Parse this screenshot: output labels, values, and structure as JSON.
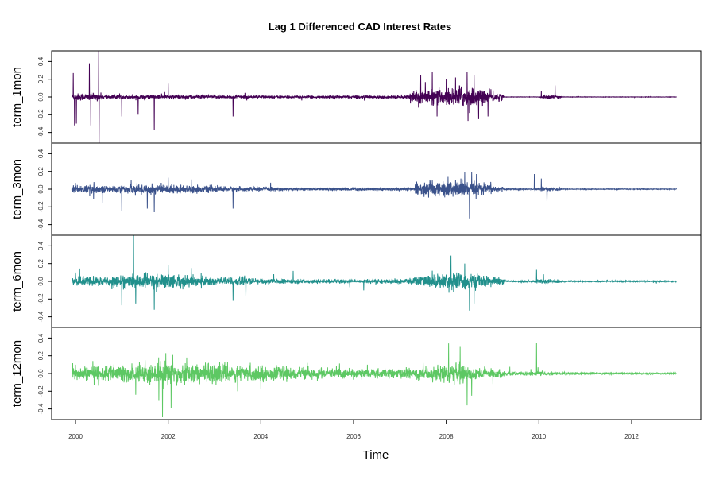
{
  "chart_data": {
    "type": "line",
    "title": "Lag 1 Differenced CAD Interest Rates",
    "xlabel": "Time",
    "xlim": [
      2000,
      2013
    ],
    "x_ticks": [
      "2000",
      "2002",
      "2004",
      "2006",
      "2008",
      "2010",
      "2012"
    ],
    "y_ticks": [
      "-0.4",
      "-0.2",
      "0.0",
      "0.2",
      "0.4"
    ],
    "ylim": [
      -0.52,
      0.52
    ],
    "data_start": 1999.92,
    "data_end": 2012.97,
    "series": [
      {
        "name": "term_1mon",
        "color": "#440154",
        "volatility": [
          [
            1999.9,
            0.02
          ],
          [
            2000.5,
            0.02
          ],
          [
            2000.6,
            0.01
          ],
          [
            2002.0,
            0.012
          ],
          [
            2003.0,
            0.01
          ],
          [
            2005.0,
            0.006
          ],
          [
            2006.0,
            0.008
          ],
          [
            2007.2,
            0.008
          ],
          [
            2007.3,
            0.04
          ],
          [
            2008.0,
            0.04
          ],
          [
            2008.3,
            0.06
          ],
          [
            2008.8,
            0.04
          ],
          [
            2009.2,
            0.02
          ],
          [
            2009.25,
            0.001
          ],
          [
            2010.0,
            0.001
          ],
          [
            2010.05,
            0.01
          ],
          [
            2010.45,
            0.01
          ],
          [
            2010.5,
            0.001
          ],
          [
            2013.0,
            0.001
          ]
        ],
        "spikes": [
          [
            1999.95,
            0.27
          ],
          [
            1999.98,
            -0.32
          ],
          [
            2000.02,
            -0.3
          ],
          [
            2000.3,
            0.38
          ],
          [
            2000.33,
            -0.32
          ],
          [
            2000.5,
            0.62
          ],
          [
            2000.51,
            -0.75
          ],
          [
            2000.55,
            0.05
          ],
          [
            2001.0,
            -0.22
          ],
          [
            2001.35,
            -0.2
          ],
          [
            2001.7,
            -0.37
          ],
          [
            2002.0,
            0.15
          ],
          [
            2003.4,
            -0.22
          ],
          [
            2007.35,
            0.08
          ],
          [
            2007.45,
            0.25
          ],
          [
            2007.7,
            0.28
          ],
          [
            2007.8,
            -0.22
          ],
          [
            2008.0,
            0.2
          ],
          [
            2008.2,
            0.22
          ],
          [
            2008.45,
            0.28
          ],
          [
            2008.47,
            -0.27
          ],
          [
            2008.5,
            -0.18
          ],
          [
            2008.6,
            0.25
          ],
          [
            2008.7,
            -0.25
          ],
          [
            2008.9,
            -0.22
          ],
          [
            2010.35,
            0.13
          ],
          [
            2010.05,
            0.07
          ]
        ]
      },
      {
        "name": "term_3mon",
        "color": "#3B528B",
        "volatility": [
          [
            1999.9,
            0.02
          ],
          [
            2001.0,
            0.02
          ],
          [
            2001.5,
            0.03
          ],
          [
            2002.0,
            0.025
          ],
          [
            2003.0,
            0.015
          ],
          [
            2005.0,
            0.006
          ],
          [
            2006.0,
            0.008
          ],
          [
            2007.3,
            0.008
          ],
          [
            2007.35,
            0.035
          ],
          [
            2008.3,
            0.05
          ],
          [
            2008.8,
            0.03
          ],
          [
            2009.2,
            0.02
          ],
          [
            2009.25,
            0.003
          ],
          [
            2010.0,
            0.003
          ],
          [
            2010.05,
            0.01
          ],
          [
            2010.45,
            0.01
          ],
          [
            2010.5,
            0.002
          ],
          [
            2013.0,
            0.002
          ]
        ],
        "spikes": [
          [
            2000.0,
            0.07
          ],
          [
            2000.4,
            0.08
          ],
          [
            2001.0,
            -0.25
          ],
          [
            2001.2,
            0.1
          ],
          [
            2001.55,
            -0.22
          ],
          [
            2001.7,
            -0.26
          ],
          [
            2002.0,
            0.13
          ],
          [
            2002.5,
            0.11
          ],
          [
            2003.4,
            -0.22
          ],
          [
            2007.35,
            0.08
          ],
          [
            2007.7,
            0.1
          ],
          [
            2008.2,
            0.1
          ],
          [
            2008.4,
            0.19
          ],
          [
            2008.5,
            -0.33
          ],
          [
            2008.55,
            0.19
          ],
          [
            2008.65,
            0.17
          ],
          [
            2009.9,
            0.17
          ],
          [
            2010.05,
            0.12
          ]
        ]
      },
      {
        "name": "term_6mon",
        "color": "#21908C",
        "volatility": [
          [
            1999.9,
            0.025
          ],
          [
            2001.0,
            0.03
          ],
          [
            2001.5,
            0.04
          ],
          [
            2002.0,
            0.04
          ],
          [
            2003.0,
            0.025
          ],
          [
            2004.0,
            0.015
          ],
          [
            2005.0,
            0.01
          ],
          [
            2006.0,
            0.01
          ],
          [
            2007.0,
            0.012
          ],
          [
            2007.5,
            0.03
          ],
          [
            2008.3,
            0.05
          ],
          [
            2008.8,
            0.03
          ],
          [
            2009.2,
            0.02
          ],
          [
            2009.3,
            0.005
          ],
          [
            2009.9,
            0.005
          ],
          [
            2010.0,
            0.012
          ],
          [
            2010.45,
            0.01
          ],
          [
            2010.5,
            0.003
          ],
          [
            2013.0,
            0.003
          ]
        ],
        "spikes": [
          [
            2000.0,
            0.1
          ],
          [
            2001.0,
            -0.27
          ],
          [
            2001.3,
            -0.25
          ],
          [
            2001.7,
            -0.32
          ],
          [
            2002.0,
            0.18
          ],
          [
            2002.5,
            0.15
          ],
          [
            2003.4,
            -0.22
          ],
          [
            2007.7,
            0.12
          ],
          [
            2008.1,
            0.29
          ],
          [
            2008.4,
            0.2
          ],
          [
            2008.5,
            -0.33
          ],
          [
            2008.6,
            -0.25
          ],
          [
            2009.95,
            0.13
          ],
          [
            2010.1,
            0.08
          ]
        ]
      },
      {
        "name": "term_12mon",
        "color": "#5DC863",
        "volatility": [
          [
            1999.9,
            0.035
          ],
          [
            2001.0,
            0.045
          ],
          [
            2002.0,
            0.06
          ],
          [
            2003.0,
            0.05
          ],
          [
            2004.0,
            0.04
          ],
          [
            2005.0,
            0.03
          ],
          [
            2006.0,
            0.025
          ],
          [
            2007.0,
            0.025
          ],
          [
            2007.5,
            0.035
          ],
          [
            2008.2,
            0.05
          ],
          [
            2008.8,
            0.03
          ],
          [
            2009.2,
            0.02
          ],
          [
            2009.3,
            0.01
          ],
          [
            2010.0,
            0.012
          ],
          [
            2011.0,
            0.006
          ],
          [
            2013.0,
            0.004
          ]
        ],
        "spikes": [
          [
            2000.0,
            0.1
          ],
          [
            2000.4,
            0.08
          ],
          [
            2001.3,
            -0.24
          ],
          [
            2001.5,
            0.15
          ],
          [
            2001.8,
            -0.3
          ],
          [
            2001.95,
            0.23
          ],
          [
            2002.1,
            0.21
          ],
          [
            2002.4,
            0.18
          ],
          [
            2003.5,
            -0.2
          ],
          [
            2004.0,
            -0.17
          ],
          [
            2005.0,
            0.12
          ],
          [
            2006.3,
            0.1
          ],
          [
            2007.5,
            0.12
          ],
          [
            2008.05,
            0.34
          ],
          [
            2008.3,
            0.3
          ],
          [
            2008.45,
            -0.36
          ],
          [
            2008.55,
            -0.25
          ],
          [
            2009.95,
            0.35
          ],
          [
            2009.98,
            0.07
          ]
        ]
      }
    ]
  }
}
